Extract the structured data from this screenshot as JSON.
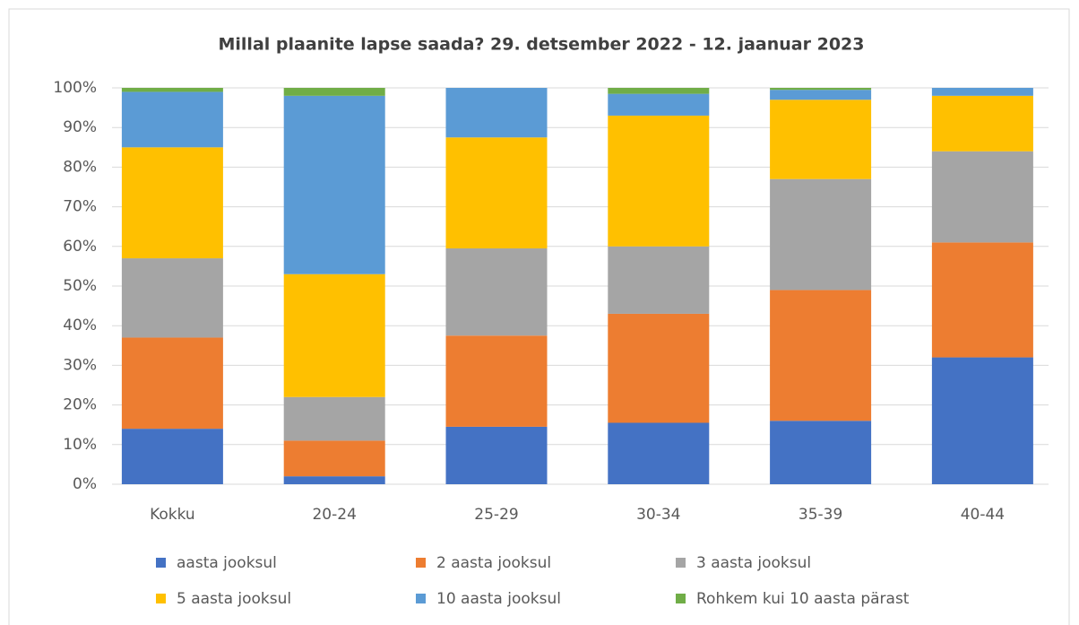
{
  "chart_data": {
    "type": "stacked_bar",
    "title": "Millal plaanite lapse saada? 29. detsember 2022 - 12. jaanuar 2023",
    "categories": [
      "Kokku",
      "20-24",
      "25-29",
      "30-34",
      "35-39",
      "40-44"
    ],
    "series": [
      {
        "name": "aasta jooksul",
        "color": "#4472c4",
        "values": [
          14,
          2,
          14.5,
          15.5,
          16,
          32
        ]
      },
      {
        "name": "2 aasta jooksul",
        "color": "#ed7d31",
        "values": [
          23,
          9,
          23,
          27.5,
          33,
          29
        ]
      },
      {
        "name": "3 aasta jooksul",
        "color": "#a5a5a5",
        "values": [
          20,
          11,
          22,
          17,
          28,
          23
        ]
      },
      {
        "name": "5 aasta jooksul",
        "color": "#ffc000",
        "values": [
          28,
          31,
          28,
          33,
          20,
          14
        ]
      },
      {
        "name": "10 aasta jooksul",
        "color": "#5b9bd5",
        "values": [
          14,
          45,
          12.5,
          5.5,
          2.5,
          2
        ]
      },
      {
        "name": "Rohkem kui 10 aasta pärast",
        "color": "#70ad47",
        "values": [
          1,
          2,
          0,
          1.5,
          0.5,
          0
        ]
      }
    ],
    "ylim": [
      0,
      100
    ],
    "yticks": [
      {
        "value": 0,
        "label": "0%"
      },
      {
        "value": 10,
        "label": "10%"
      },
      {
        "value": 20,
        "label": "20%"
      },
      {
        "value": 30,
        "label": "30%"
      },
      {
        "value": 40,
        "label": "40%"
      },
      {
        "value": 50,
        "label": "50%"
      },
      {
        "value": 60,
        "label": "60%"
      },
      {
        "value": 70,
        "label": "70%"
      },
      {
        "value": 80,
        "label": "80%"
      },
      {
        "value": 90,
        "label": "90%"
      },
      {
        "value": 100,
        "label": "100%"
      }
    ],
    "grid": true
  }
}
